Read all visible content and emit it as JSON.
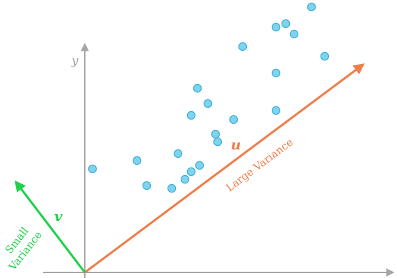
{
  "axes": {
    "y_label": "y"
  },
  "points_count_visible": 22,
  "vectors": {
    "u": {
      "symbol": "u",
      "label": "Large Variance",
      "color": "#f07e4b"
    },
    "v": {
      "symbol": "v",
      "label_line1": "Small",
      "label_line2": "Variance",
      "color": "#1fd14b"
    }
  },
  "colors": {
    "axis": "#a6a6a6",
    "point_fill": "#7fd3ec",
    "point_stroke": "#3cb0d8"
  }
}
